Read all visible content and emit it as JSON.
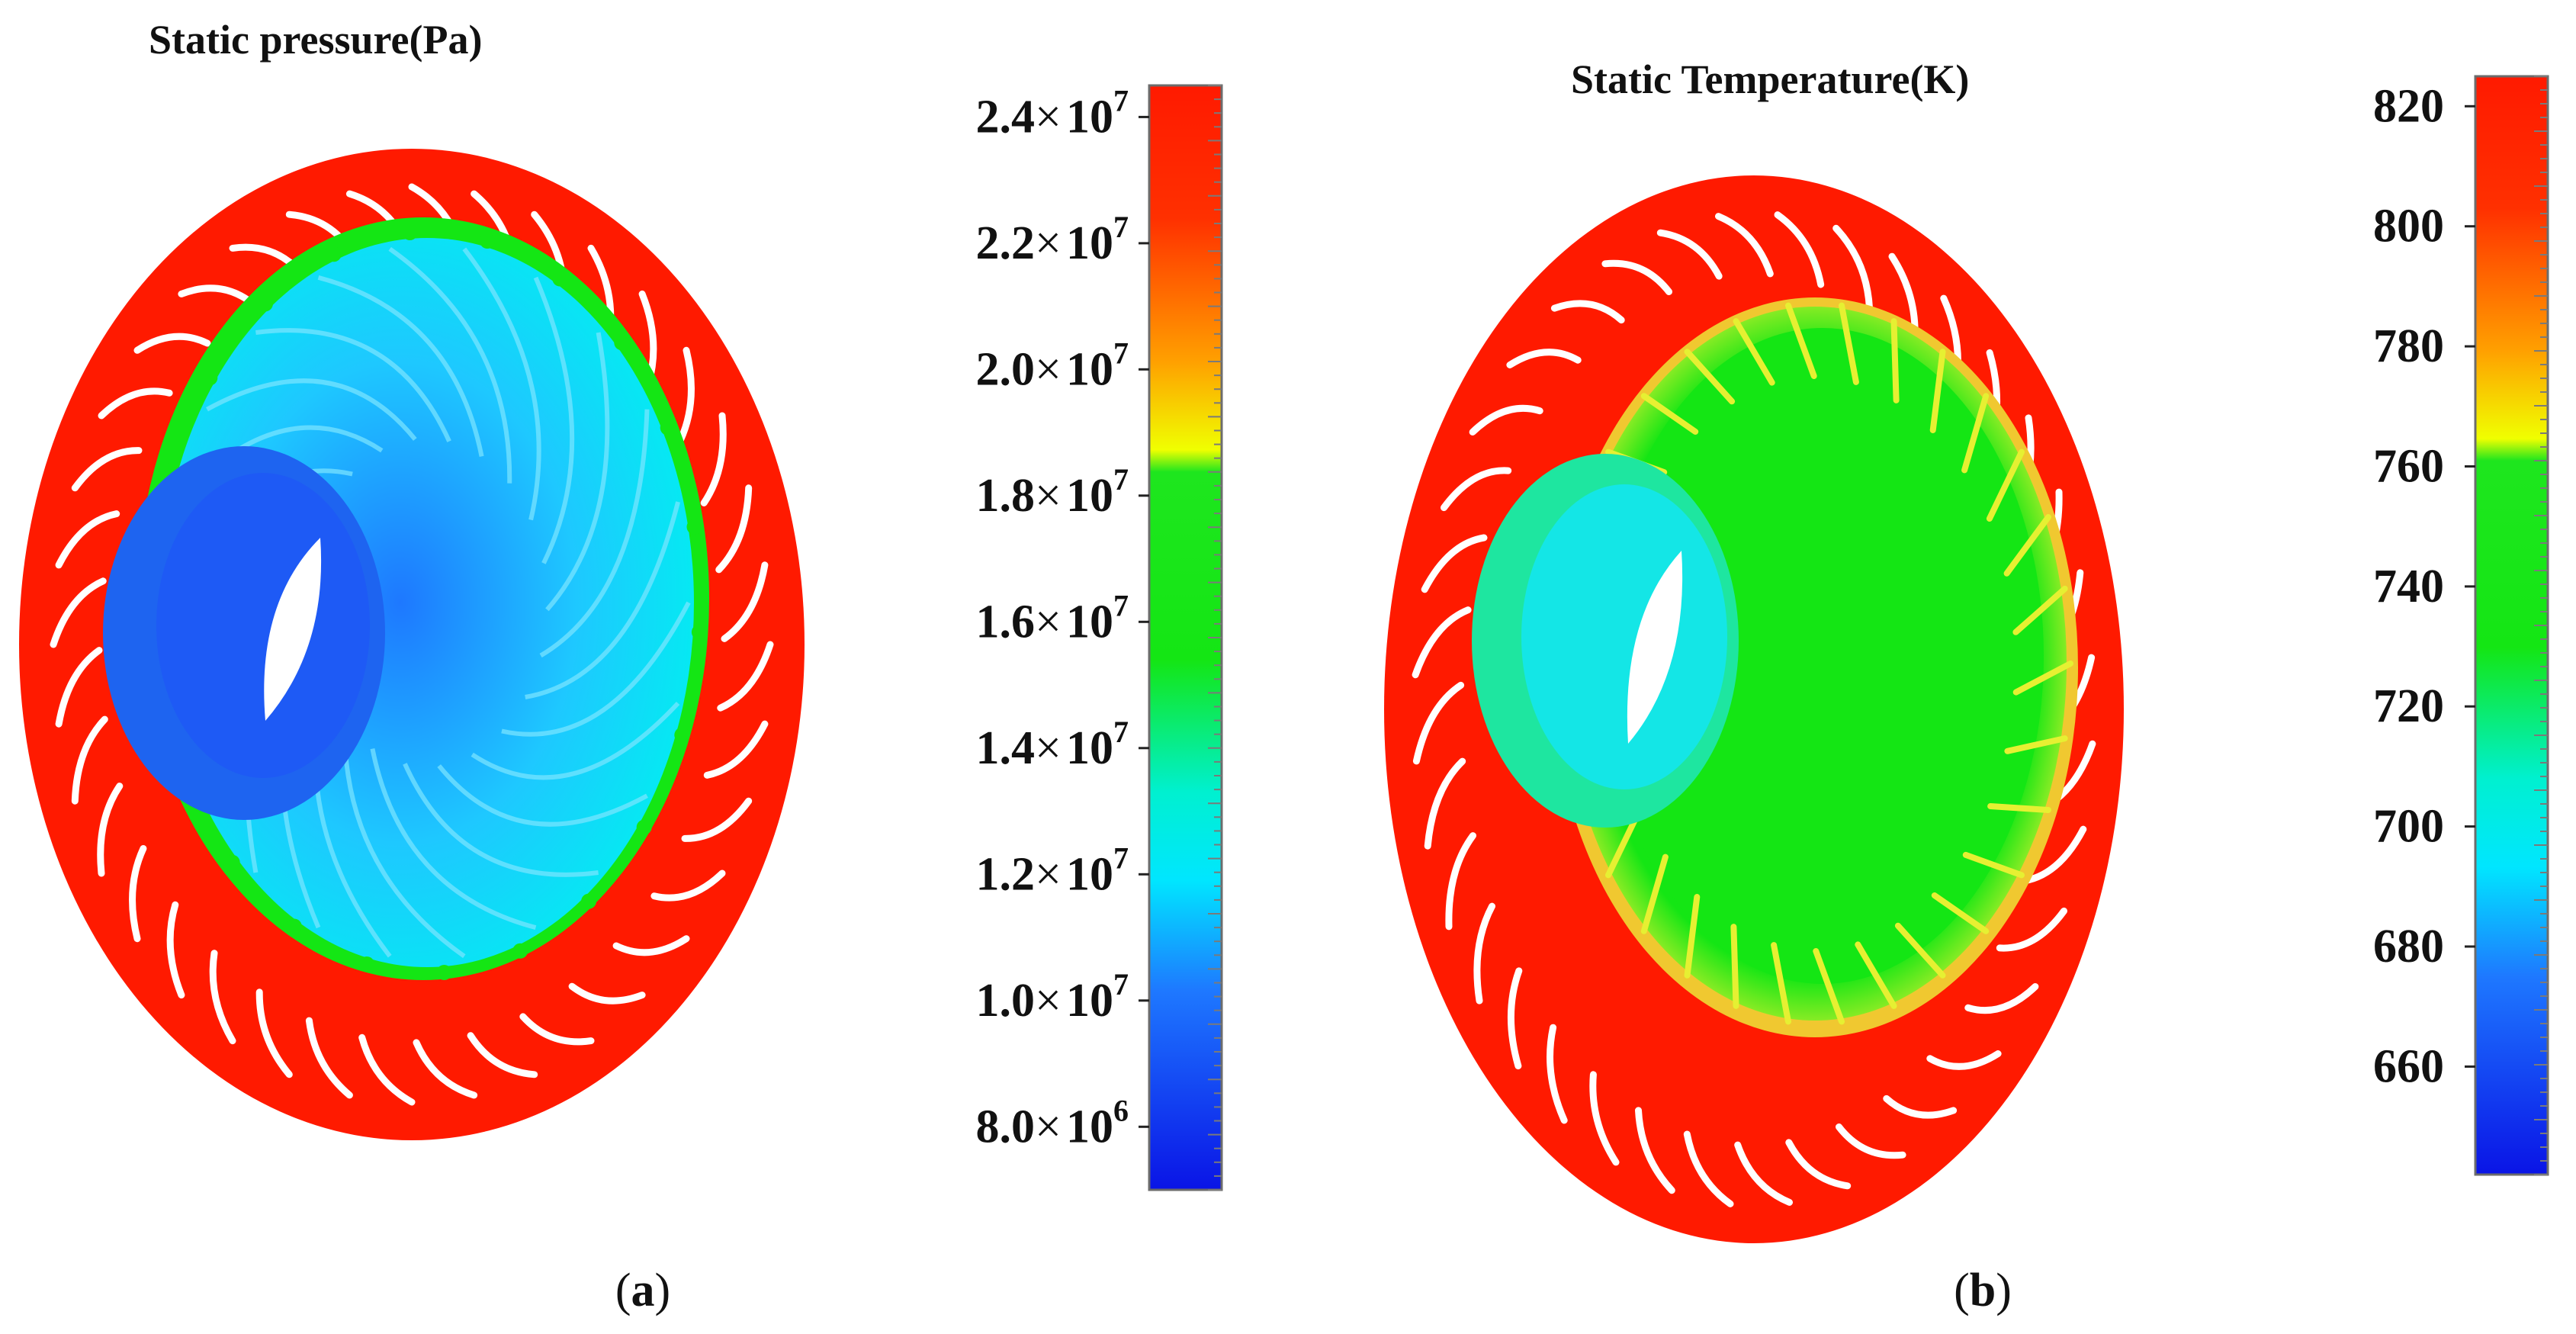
{
  "panels": [
    {
      "id": "a",
      "title": "Static pressure(Pa)",
      "caption_open": "(",
      "caption_letter": "a",
      "caption_close": ")",
      "colorbar": {
        "min": 7000000,
        "max": 24500000,
        "ticks": [
          {
            "value": 24000000,
            "mantissa": "2.4",
            "times": "×",
            "base": "10",
            "exp": "7"
          },
          {
            "value": 22000000,
            "mantissa": "2.2",
            "times": "×",
            "base": "10",
            "exp": "7"
          },
          {
            "value": 20000000,
            "mantissa": "2.0",
            "times": "×",
            "base": "10",
            "exp": "7"
          },
          {
            "value": 18000000,
            "mantissa": "1.8",
            "times": "×",
            "base": "10",
            "exp": "7"
          },
          {
            "value": 16000000,
            "mantissa": "1.6",
            "times": "×",
            "base": "10",
            "exp": "7"
          },
          {
            "value": 14000000,
            "mantissa": "1.4",
            "times": "×",
            "base": "10",
            "exp": "7"
          },
          {
            "value": 12000000,
            "mantissa": "1.2",
            "times": "×",
            "base": "10",
            "exp": "7"
          },
          {
            "value": 10000000,
            "mantissa": "1.0",
            "times": "×",
            "base": "10",
            "exp": "7"
          },
          {
            "value": 8000000,
            "mantissa": "8.0",
            "times": "×",
            "base": "10",
            "exp": "6"
          }
        ]
      }
    },
    {
      "id": "b",
      "title": "Static Temperature(K)",
      "caption_open": "(",
      "caption_letter": "b",
      "caption_close": ")",
      "colorbar": {
        "min": 642,
        "max": 825,
        "ticks": [
          {
            "value": 820,
            "label": "820"
          },
          {
            "value": 800,
            "label": "800"
          },
          {
            "value": 780,
            "label": "780"
          },
          {
            "value": 760,
            "label": "760"
          },
          {
            "value": 740,
            "label": "740"
          },
          {
            "value": 720,
            "label": "720"
          },
          {
            "value": 700,
            "label": "700"
          },
          {
            "value": 680,
            "label": "680"
          },
          {
            "value": 660,
            "label": "660"
          }
        ]
      }
    }
  ],
  "colors": {
    "red": "#ff1a00",
    "orange": "#ff8c00",
    "yellow": "#f0ff00",
    "green": "#14e614",
    "cyan": "#00f0f0",
    "blue": "#1e5aff",
    "dark_blue": "#0a14e6"
  }
}
